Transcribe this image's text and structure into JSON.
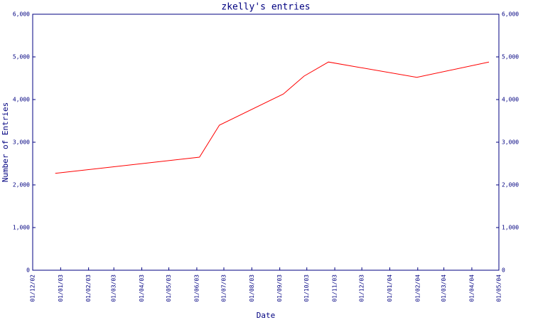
{
  "chart_data": {
    "type": "line",
    "title": "zkelly's entries",
    "xlabel": "Date",
    "ylabel": "Number of Entries",
    "x": [
      "2002-12-26",
      "2003-06-04",
      "2003-06-26",
      "2003-09-05",
      "2003-09-28",
      "2003-10-25",
      "2004-01-31",
      "2004-04-20"
    ],
    "values": [
      2270,
      2650,
      3400,
      4130,
      4550,
      4880,
      4520,
      4880
    ],
    "color": "#ff0000",
    "axis_color": "#000080",
    "xlim": [
      "2002-12-01",
      "2004-05-01"
    ],
    "xticks": [
      {
        "value": "2002-12-01",
        "label": "01/12/02"
      },
      {
        "value": "2003-01-01",
        "label": "01/01/03"
      },
      {
        "value": "2003-02-01",
        "label": "01/02/03"
      },
      {
        "value": "2003-03-01",
        "label": "01/03/03"
      },
      {
        "value": "2003-04-01",
        "label": "01/04/03"
      },
      {
        "value": "2003-05-01",
        "label": "01/05/03"
      },
      {
        "value": "2003-06-01",
        "label": "01/06/03"
      },
      {
        "value": "2003-07-01",
        "label": "01/07/03"
      },
      {
        "value": "2003-08-01",
        "label": "01/08/03"
      },
      {
        "value": "2003-09-01",
        "label": "01/09/03"
      },
      {
        "value": "2003-10-01",
        "label": "01/10/03"
      },
      {
        "value": "2003-11-01",
        "label": "01/11/03"
      },
      {
        "value": "2003-12-01",
        "label": "01/12/03"
      },
      {
        "value": "2004-01-01",
        "label": "01/01/04"
      },
      {
        "value": "2004-02-01",
        "label": "01/02/04"
      },
      {
        "value": "2004-03-01",
        "label": "01/03/04"
      },
      {
        "value": "2004-04-01",
        "label": "01/04/04"
      },
      {
        "value": "2004-05-01",
        "label": "01/05/04"
      }
    ],
    "ylim": [
      0,
      6000
    ],
    "yticks": [
      0,
      {
        "value": 1000,
        "label": "1,000"
      },
      {
        "value": 2000,
        "label": "2,000"
      },
      {
        "value": 3000,
        "label": "3,000"
      },
      {
        "value": 4000,
        "label": "4,000"
      },
      {
        "value": 5000,
        "label": "5,000"
      },
      {
        "value": 6000,
        "label": "6,000"
      }
    ]
  }
}
